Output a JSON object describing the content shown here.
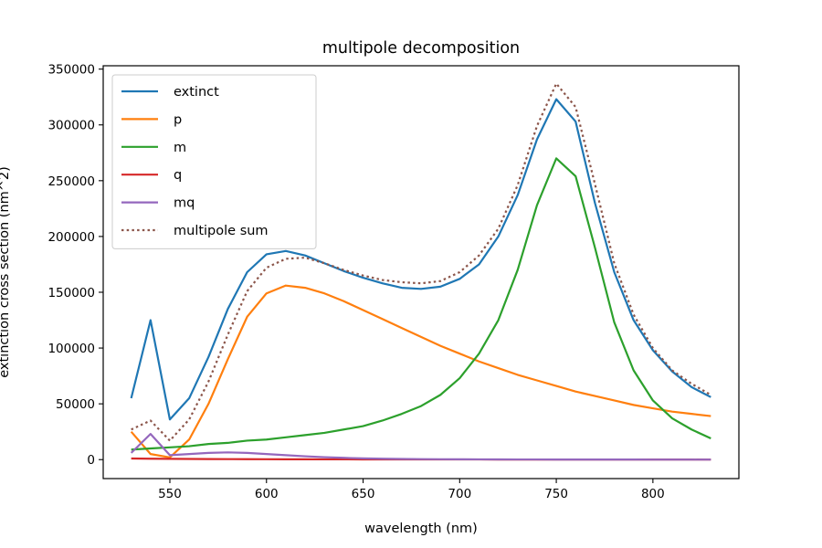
{
  "chart_data": {
    "type": "line",
    "title": "multipole decomposition",
    "xlabel": "wavelength (nm)",
    "ylabel": "extinction cross section (nm^2)",
    "xlim": [
      515.5,
      844.5
    ],
    "ylim": [
      -17000,
      353000
    ],
    "xticks": [
      550,
      600,
      650,
      700,
      750,
      800
    ],
    "yticks": [
      0,
      50000,
      100000,
      150000,
      200000,
      250000,
      300000,
      350000
    ],
    "grid": false,
    "legend_position": "top-left",
    "x": [
      530,
      540,
      550,
      560,
      570,
      580,
      590,
      600,
      610,
      620,
      630,
      640,
      650,
      660,
      670,
      680,
      690,
      700,
      710,
      720,
      730,
      740,
      750,
      760,
      770,
      780,
      790,
      800,
      810,
      820,
      830
    ],
    "series": [
      {
        "name": "extinct",
        "color": "#1f77b4",
        "dash": "solid",
        "values": [
          55000,
          125000,
          36000,
          55000,
          92000,
          135000,
          168000,
          184000,
          187000,
          183000,
          176000,
          169000,
          163000,
          158000,
          154000,
          153000,
          155000,
          162000,
          175000,
          200000,
          237000,
          287000,
          323000,
          303000,
          230000,
          168000,
          125000,
          98000,
          79000,
          65000,
          56000
        ]
      },
      {
        "name": "p",
        "color": "#ff7f0e",
        "dash": "solid",
        "values": [
          25000,
          5000,
          2000,
          18000,
          50000,
          90000,
          128000,
          149000,
          156000,
          154000,
          149000,
          142000,
          134000,
          126000,
          118000,
          110000,
          102000,
          95000,
          88000,
          82000,
          76000,
          71000,
          66000,
          61000,
          57000,
          53000,
          49000,
          46000,
          43000,
          41000,
          39000
        ]
      },
      {
        "name": "m",
        "color": "#2ca02c",
        "dash": "solid",
        "values": [
          9000,
          10000,
          11000,
          12000,
          14000,
          15000,
          17000,
          18000,
          20000,
          22000,
          24000,
          27000,
          30000,
          35000,
          41000,
          48000,
          58000,
          73000,
          95000,
          125000,
          170000,
          228000,
          270000,
          254000,
          190000,
          123000,
          80000,
          53000,
          37000,
          27000,
          19000
        ]
      },
      {
        "name": "q",
        "color": "#d62728",
        "dash": "solid",
        "values": [
          1000,
          800,
          700,
          600,
          500,
          450,
          400,
          350,
          300,
          280,
          250,
          230,
          210,
          190,
          170,
          160,
          150,
          140,
          130,
          120,
          110,
          100,
          95,
          90,
          85,
          80,
          75,
          70,
          65,
          60,
          55
        ]
      },
      {
        "name": "mq",
        "color": "#9467bd",
        "dash": "solid",
        "values": [
          6000,
          23000,
          4000,
          5000,
          6000,
          6500,
          6000,
          5000,
          4000,
          3000,
          2200,
          1600,
          1100,
          800,
          600,
          450,
          350,
          280,
          220,
          180,
          150,
          130,
          110,
          95,
          80,
          70,
          60,
          55,
          50,
          45,
          40
        ]
      },
      {
        "name": "multipole sum",
        "color": "#8c564b",
        "dash": "dotted",
        "values": [
          27000,
          35000,
          17000,
          36000,
          70000,
          112000,
          151000,
          172000,
          180000,
          181000,
          176000,
          170000,
          165000,
          161000,
          159000,
          158000,
          160000,
          168000,
          183000,
          207000,
          246000,
          299000,
          337000,
          316000,
          247000,
          176000,
          130000,
          100000,
          80000,
          68000,
          58000
        ]
      }
    ]
  }
}
